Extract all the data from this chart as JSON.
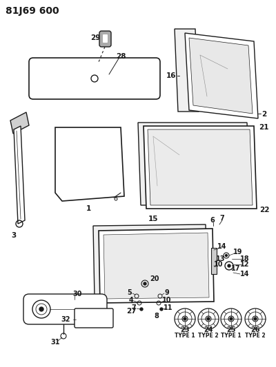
{
  "bg_color": "#ffffff",
  "title_code": "81J69 600",
  "line_color": "#1a1a1a",
  "label_fontsize": 7.5,
  "fig_width": 4.0,
  "fig_height": 5.33,
  "dpi": 100
}
